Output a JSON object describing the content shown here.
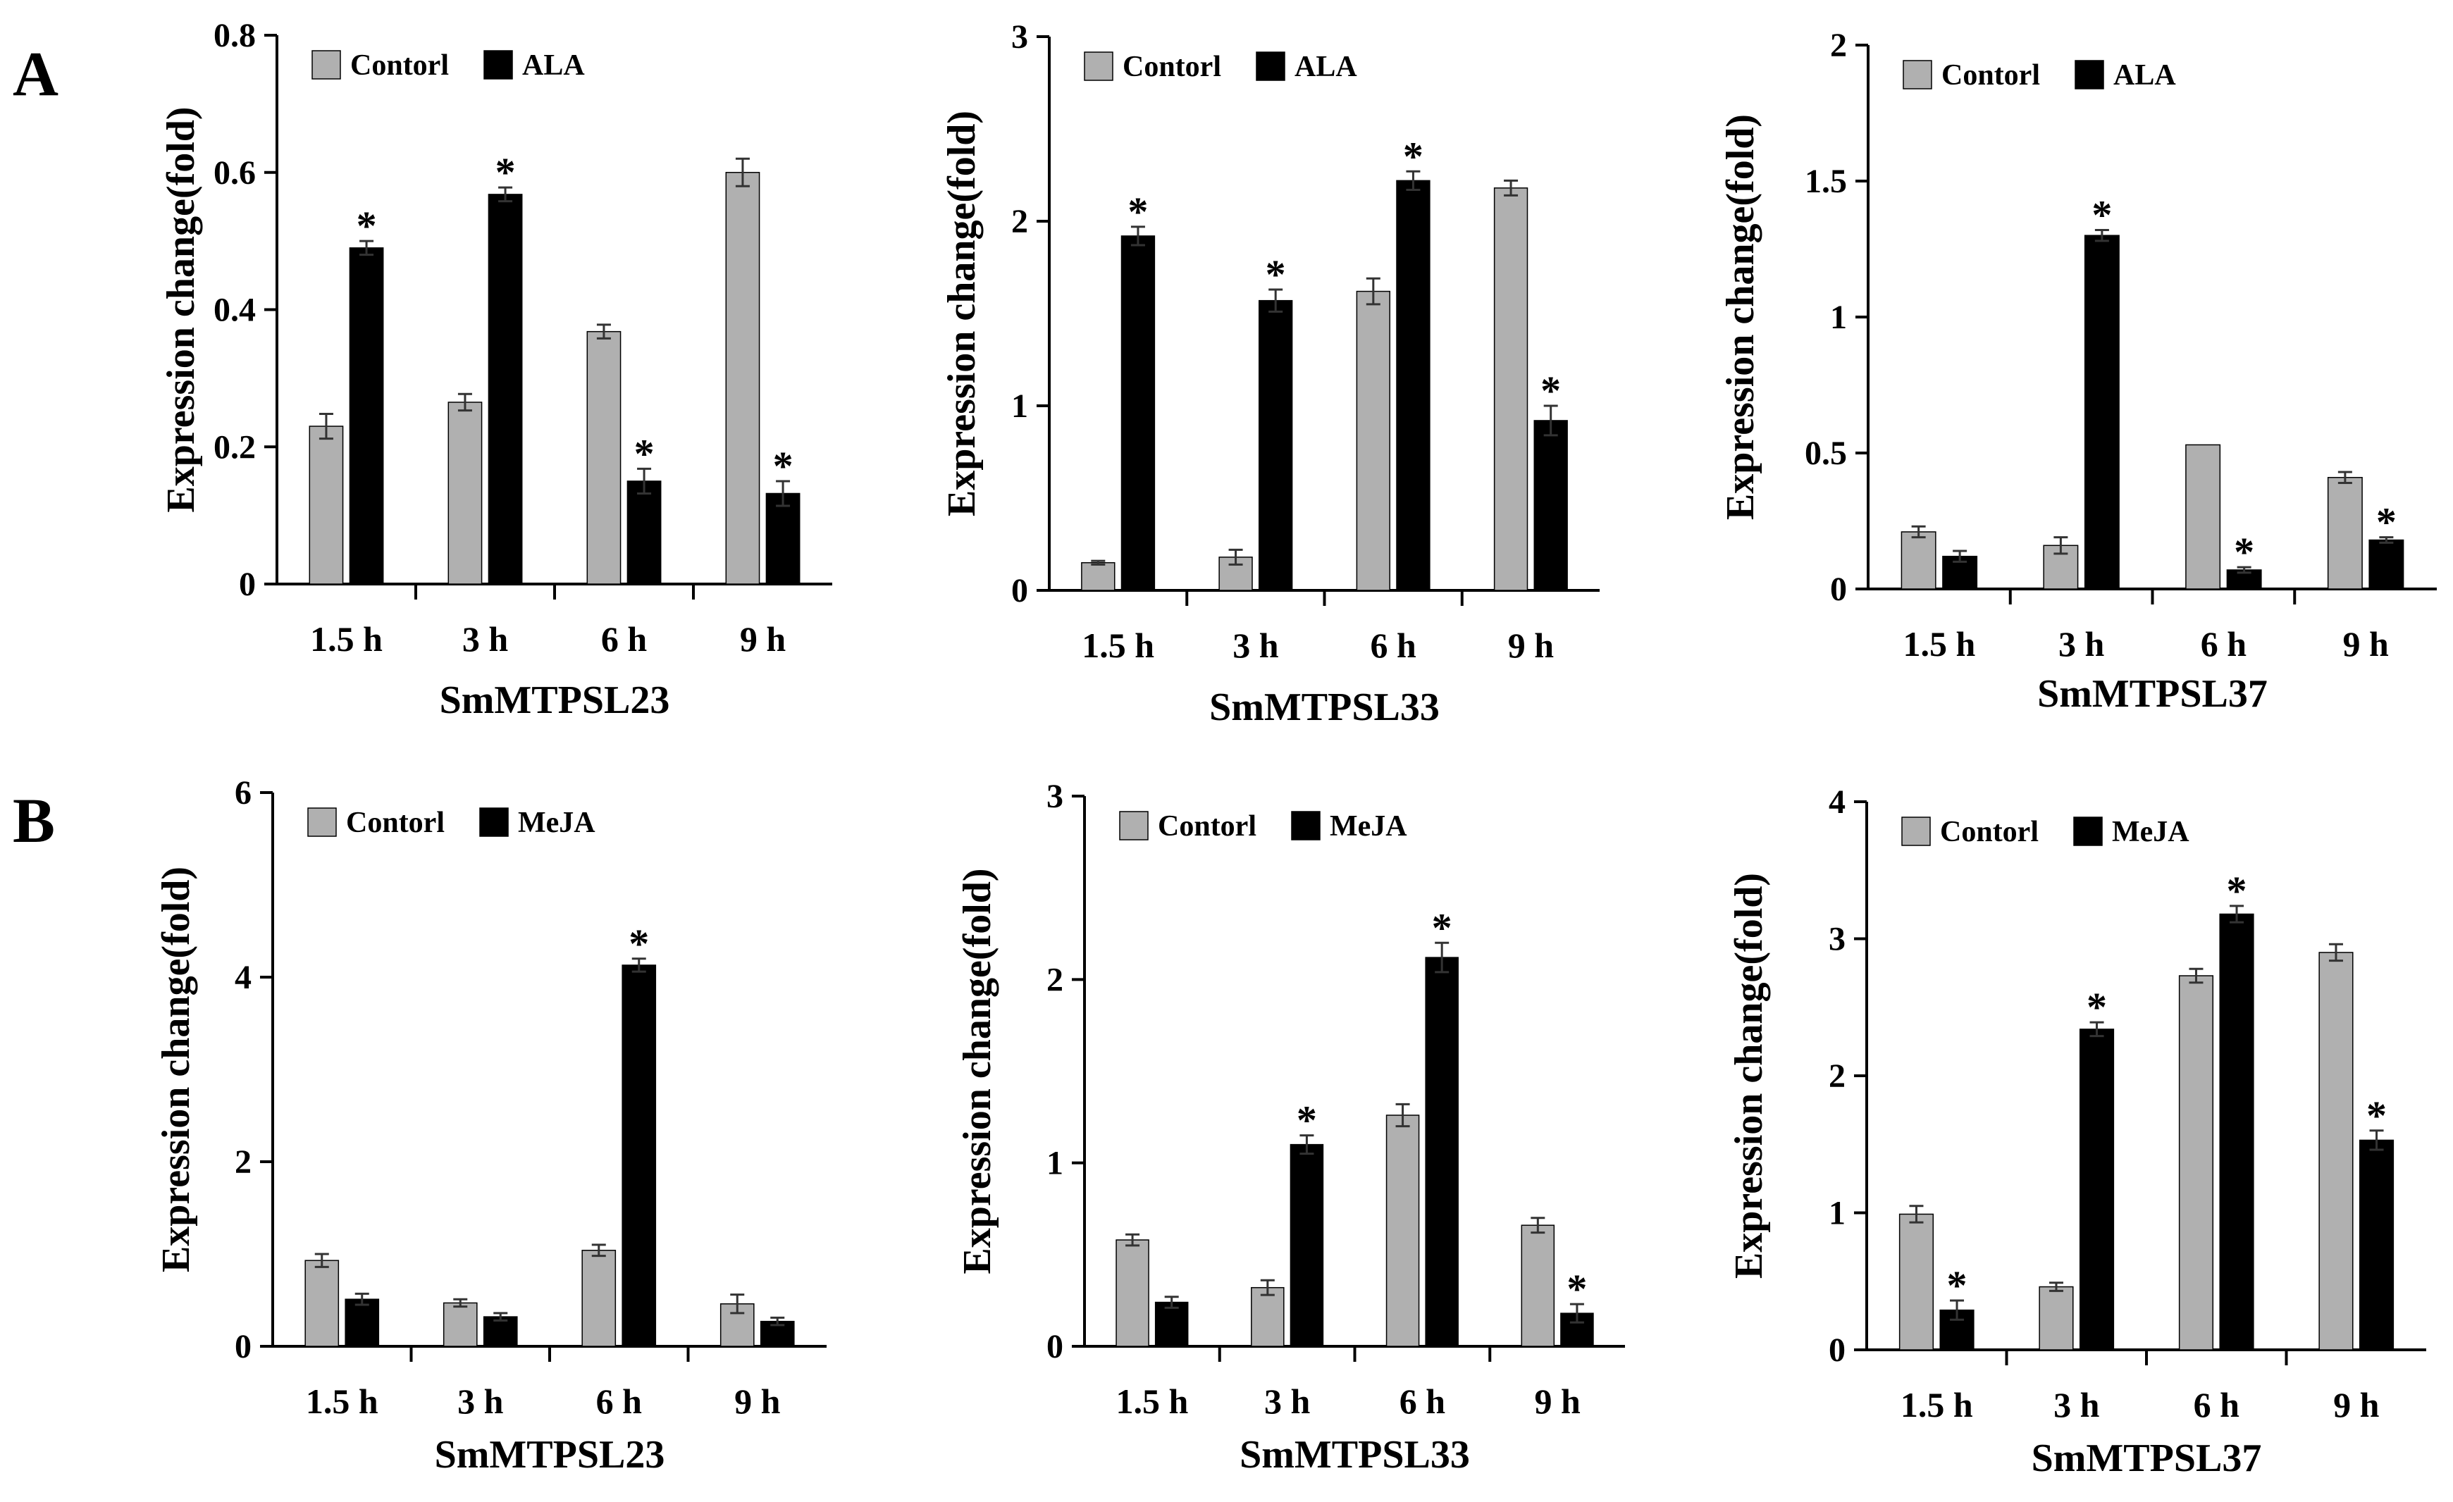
{
  "figure": {
    "panel_labels": [
      "A",
      "B"
    ]
  },
  "colors": {
    "control": "#b0b0b0",
    "treatment": "#000000",
    "axis": "#000000",
    "error": "#333333"
  },
  "chart_data": [
    {
      "type": "bar",
      "panel": "A",
      "title": "SmMTPSL23",
      "xlabel": "SmMTPSL23",
      "ylabel": "Expression change(fold)",
      "categories": [
        "1.5 h",
        "3 h",
        "6 h",
        "9 h"
      ],
      "ylim": [
        0,
        0.8
      ],
      "yticks": [
        0,
        0.2,
        0.4,
        0.6,
        0.8
      ],
      "ytick_labels": [
        "0",
        "0.2",
        "0.4",
        "0.6",
        "0.8"
      ],
      "legend": [
        "Contorl",
        "ALA"
      ],
      "legend_position": "top-left",
      "series": [
        {
          "name": "Contorl",
          "values": [
            0.23,
            0.265,
            0.368,
            0.6
          ],
          "errors": [
            0.018,
            0.012,
            0.01,
            0.02
          ],
          "stars": [
            false,
            false,
            false,
            false
          ]
        },
        {
          "name": "ALA",
          "values": [
            0.49,
            0.568,
            0.15,
            0.132
          ],
          "errors": [
            0.01,
            0.01,
            0.018,
            0.018
          ],
          "stars": [
            true,
            true,
            true,
            true
          ]
        }
      ]
    },
    {
      "type": "bar",
      "panel": "A",
      "title": "SmMTPSL33",
      "xlabel": "SmMTPSL33",
      "ylabel": "Expression change(fold)",
      "categories": [
        "1.5 h",
        "3 h",
        "6 h",
        "9 h"
      ],
      "ylim": [
        0,
        3
      ],
      "yticks": [
        0,
        1,
        2,
        3
      ],
      "ytick_labels": [
        "0",
        "1",
        "2",
        "3"
      ],
      "legend": [
        "Contorl",
        "ALA"
      ],
      "legend_position": "top-left",
      "series": [
        {
          "name": "Contorl",
          "values": [
            0.15,
            0.18,
            1.62,
            2.18
          ],
          "errors": [
            0.01,
            0.04,
            0.07,
            0.04
          ],
          "stars": [
            false,
            false,
            false,
            false
          ]
        },
        {
          "name": "ALA",
          "values": [
            1.92,
            1.57,
            2.22,
            0.92
          ],
          "errors": [
            0.05,
            0.06,
            0.05,
            0.08
          ],
          "stars": [
            true,
            true,
            true,
            true
          ]
        }
      ]
    },
    {
      "type": "bar",
      "panel": "A",
      "title": "SmMTPSL37",
      "xlabel": "SmMTPSL37",
      "ylabel": "Expression change(fold)",
      "categories": [
        "1.5 h",
        "3 h",
        "6 h",
        "9 h"
      ],
      "ylim": [
        0,
        2
      ],
      "yticks": [
        0,
        0.5,
        1,
        1.5,
        2
      ],
      "ytick_labels": [
        "0",
        "0.5",
        "1",
        "1.5",
        "2"
      ],
      "legend": [
        "Contorl",
        "ALA"
      ],
      "legend_position": "top-left",
      "series": [
        {
          "name": "Contorl",
          "values": [
            0.21,
            0.16,
            0.53,
            0.41
          ],
          "errors": [
            0.02,
            0.03,
            0.0,
            0.02
          ],
          "stars": [
            false,
            false,
            false,
            false
          ]
        },
        {
          "name": "ALA",
          "values": [
            0.12,
            1.3,
            0.07,
            0.18
          ],
          "errors": [
            0.02,
            0.02,
            0.01,
            0.01
          ],
          "stars": [
            false,
            true,
            true,
            true
          ]
        }
      ]
    },
    {
      "type": "bar",
      "panel": "B",
      "title": "SmMTPSL23",
      "xlabel": "SmMTPSL23",
      "ylabel": "Expression change(fold)",
      "categories": [
        "1.5 h",
        "3 h",
        "6 h",
        "9 h"
      ],
      "ylim": [
        0,
        6
      ],
      "yticks": [
        0,
        2,
        4,
        6
      ],
      "ytick_labels": [
        "0",
        "2",
        "4",
        "6"
      ],
      "legend": [
        "Contorl",
        "MeJA"
      ],
      "legend_position": "top-left",
      "series": [
        {
          "name": "Contorl",
          "values": [
            0.93,
            0.47,
            1.04,
            0.46
          ],
          "errors": [
            0.07,
            0.04,
            0.06,
            0.1
          ],
          "stars": [
            false,
            false,
            false,
            false
          ]
        },
        {
          "name": "MeJA",
          "values": [
            0.51,
            0.32,
            4.13,
            0.27
          ],
          "errors": [
            0.06,
            0.04,
            0.07,
            0.04
          ],
          "stars": [
            false,
            false,
            true,
            false
          ]
        }
      ]
    },
    {
      "type": "bar",
      "panel": "B",
      "title": "SmMTPSL33",
      "xlabel": "SmMTPSL33",
      "ylabel": "Expression change(fold)",
      "categories": [
        "1.5 h",
        "3 h",
        "6 h",
        "9 h"
      ],
      "ylim": [
        0,
        3
      ],
      "yticks": [
        0,
        1,
        2,
        3
      ],
      "ytick_labels": [
        "0",
        "1",
        "2",
        "3"
      ],
      "legend": [
        "Contorl",
        "MeJA"
      ],
      "legend_position": "top-left",
      "series": [
        {
          "name": "Contorl",
          "values": [
            0.58,
            0.32,
            1.26,
            0.66
          ],
          "errors": [
            0.03,
            0.04,
            0.06,
            0.04
          ],
          "stars": [
            false,
            false,
            false,
            false
          ]
        },
        {
          "name": "MeJA",
          "values": [
            0.24,
            1.1,
            2.12,
            0.18
          ],
          "errors": [
            0.03,
            0.05,
            0.08,
            0.05
          ],
          "stars": [
            false,
            true,
            true,
            true
          ]
        }
      ]
    },
    {
      "type": "bar",
      "panel": "B",
      "title": "SmMTPSL37",
      "xlabel": "SmMTPSL37",
      "ylabel": "Expression change(fold)",
      "categories": [
        "1.5 h",
        "3 h",
        "6 h",
        "9 h"
      ],
      "ylim": [
        0,
        4
      ],
      "yticks": [
        0,
        1,
        2,
        3,
        4
      ],
      "ytick_labels": [
        "0",
        "1",
        "2",
        "3",
        "4"
      ],
      "legend": [
        "Contorl",
        "MeJA"
      ],
      "legend_position": "top-left",
      "series": [
        {
          "name": "Contorl",
          "values": [
            0.99,
            0.46,
            2.73,
            2.9
          ],
          "errors": [
            0.06,
            0.03,
            0.05,
            0.06
          ],
          "stars": [
            false,
            false,
            false,
            false
          ]
        },
        {
          "name": "MeJA",
          "values": [
            0.29,
            2.34,
            3.18,
            1.53
          ],
          "errors": [
            0.07,
            0.05,
            0.06,
            0.07
          ],
          "stars": [
            true,
            true,
            true,
            true
          ]
        }
      ]
    }
  ]
}
